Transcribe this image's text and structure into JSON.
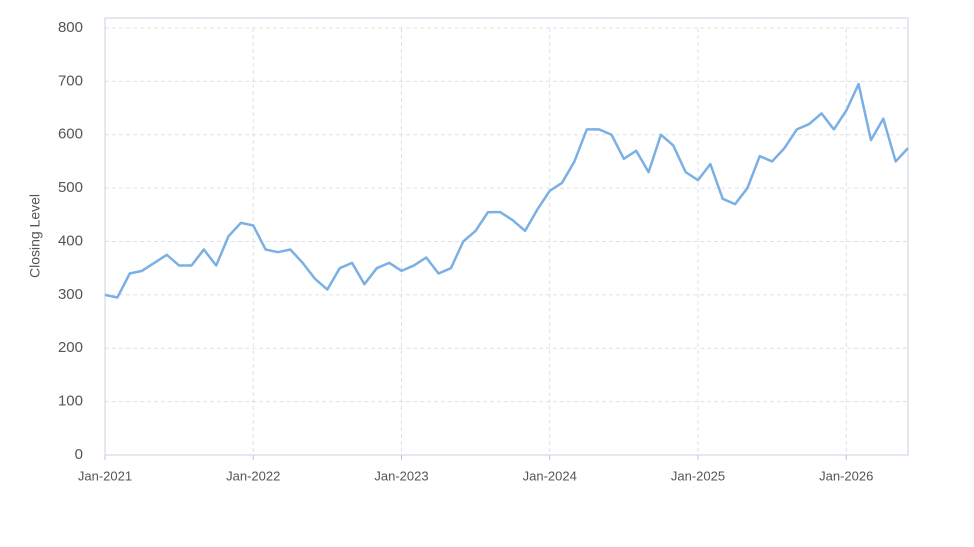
{
  "chart_data": {
    "type": "line",
    "y_label": "Closing Level",
    "x": [
      "2021-01",
      "2021-02",
      "2021-03",
      "2021-04",
      "2021-05",
      "2021-06",
      "2021-07",
      "2021-08",
      "2021-09",
      "2021-10",
      "2021-11",
      "2021-12",
      "2022-01",
      "2022-02",
      "2022-03",
      "2022-04",
      "2022-05",
      "2022-06",
      "2022-07",
      "2022-08",
      "2022-09",
      "2022-10",
      "2022-11",
      "2022-12",
      "2023-01",
      "2023-02",
      "2023-03",
      "2023-04",
      "2023-05",
      "2023-06",
      "2023-07",
      "2023-08",
      "2023-09",
      "2023-10",
      "2023-11",
      "2023-12",
      "2024-01",
      "2024-02",
      "2024-03",
      "2024-04",
      "2024-05",
      "2024-06",
      "2024-07",
      "2024-08",
      "2024-09",
      "2024-10",
      "2024-11",
      "2024-12",
      "2025-01",
      "2025-02",
      "2025-03",
      "2025-04",
      "2025-05",
      "2025-06",
      "2025-07",
      "2025-08",
      "2025-09",
      "2025-10",
      "2025-11",
      "2025-12",
      "2026-01",
      "2026-02",
      "2026-03",
      "2026-04",
      "2026-05",
      "2026-06"
    ],
    "series": [
      {
        "name": "Closing Level",
        "color": "#7ab0e4",
        "values": [
          300,
          295,
          340,
          345,
          360,
          375,
          355,
          355,
          385,
          355,
          410,
          435,
          430,
          385,
          380,
          385,
          360,
          330,
          310,
          350,
          360,
          320,
          350,
          360,
          345,
          355,
          370,
          340,
          350,
          400,
          420,
          455,
          455,
          440,
          420,
          460,
          495,
          510,
          550,
          610,
          610,
          600,
          555,
          570,
          530,
          600,
          580,
          530,
          515,
          545,
          480,
          470,
          500,
          560,
          550,
          575,
          610,
          620,
          640,
          610,
          645,
          695,
          590,
          630,
          550,
          575
        ]
      }
    ],
    "xlim": [
      "2021-01",
      "2026-06"
    ],
    "xticks": [
      {
        "value": "2021-01",
        "label": "Jan-2021"
      },
      {
        "value": "2022-01",
        "label": "Jan-2022"
      },
      {
        "value": "2023-01",
        "label": "Jan-2023"
      },
      {
        "value": "2024-01",
        "label": "Jan-2024"
      },
      {
        "value": "2025-01",
        "label": "Jan-2025"
      },
      {
        "value": "2026-01",
        "label": "Jan-2026"
      }
    ],
    "ylim": [
      0,
      800
    ],
    "yticks": [
      0,
      100,
      200,
      300,
      400,
      500,
      600,
      700,
      800
    ],
    "grid": true
  }
}
